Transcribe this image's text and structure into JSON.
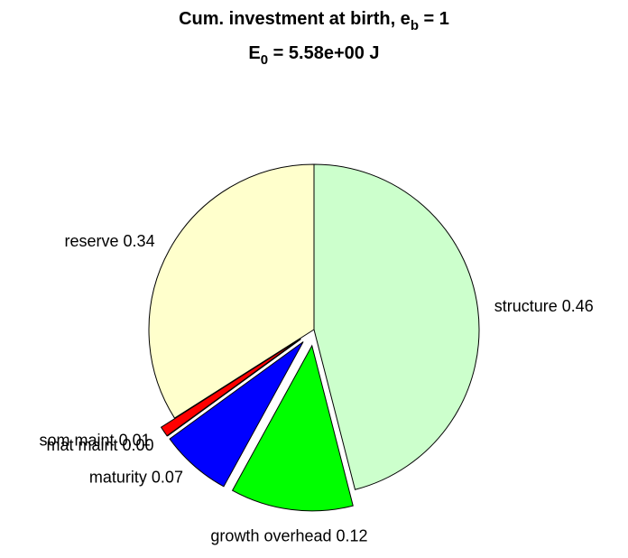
{
  "chart_data": {
    "type": "pie",
    "title": [
      "Cum. investment at birth, e",
      "b",
      " = 1"
    ],
    "subtitle": [
      "E",
      "0",
      " = 5.58e+00 J"
    ],
    "categories": [
      "structure",
      "growth overhead",
      "maturity",
      "mat maint",
      "som maint",
      "reserve"
    ],
    "values": [
      0.46,
      0.12,
      0.07,
      0,
      0.01,
      0.34
    ],
    "value_labels": [
      "0.46",
      "0.12",
      "0.07",
      "0.00",
      "0.01",
      "0.34"
    ],
    "colors": [
      "#ccffcc",
      "#00ff00",
      "#0000ff",
      "#ffff00",
      "#ff0000",
      "#ffffcc"
    ],
    "explode": [
      false,
      true,
      true,
      true,
      true,
      false
    ]
  }
}
